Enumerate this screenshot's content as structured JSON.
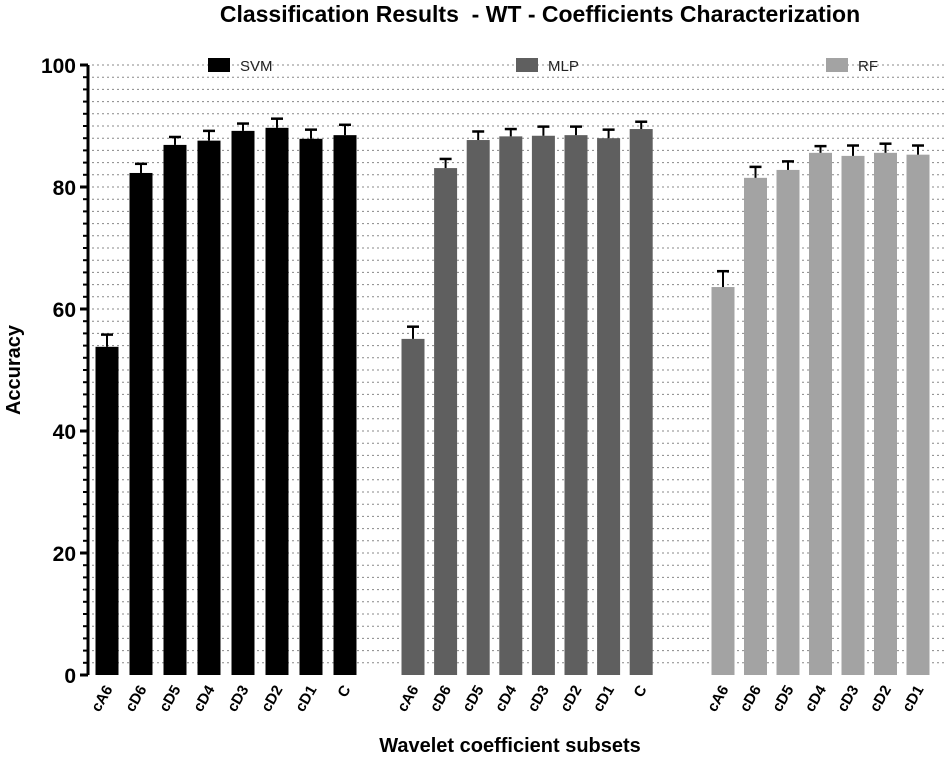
{
  "chart_data": {
    "type": "bar",
    "title": "Classification Results  - WT - Coefficients Characterization",
    "xlabel": "Wavelet coefficient subsets",
    "ylabel": "Accuracy",
    "ylim": [
      0,
      100
    ],
    "yticks": [
      0,
      20,
      40,
      60,
      80,
      100
    ],
    "grid": "horizontal dotted",
    "legend_placement": "top, above each group",
    "groups": [
      {
        "name": "SVM",
        "color": "#000000",
        "categories": [
          "cA6",
          "cD6",
          "cD5",
          "cD4",
          "cD3",
          "cD2",
          "cD1",
          "C"
        ],
        "values": [
          53.8,
          82.3,
          86.9,
          87.6,
          89.2,
          89.7,
          87.9,
          88.5
        ],
        "errors": [
          2.0,
          1.5,
          1.3,
          1.6,
          1.2,
          1.5,
          1.5,
          1.7
        ]
      },
      {
        "name": "MLP",
        "color": "#5f5f5f",
        "categories": [
          "cA6",
          "cD6",
          "cD5",
          "cD4",
          "cD3",
          "cD2",
          "cD1",
          "C"
        ],
        "values": [
          55.1,
          83.1,
          87.7,
          88.3,
          88.4,
          88.5,
          88.0,
          89.5
        ],
        "errors": [
          2.0,
          1.5,
          1.4,
          1.2,
          1.5,
          1.4,
          1.4,
          1.2
        ]
      },
      {
        "name": "RF",
        "color": "#a3a3a3",
        "categories": [
          "cA6",
          "cD6",
          "cD5",
          "cD4",
          "cD3",
          "cD2",
          "cD1"
        ],
        "values": [
          63.6,
          81.5,
          82.8,
          85.6,
          85.1,
          85.6,
          85.3
        ],
        "errors": [
          2.6,
          1.8,
          1.4,
          1.1,
          1.7,
          1.5,
          1.5
        ]
      }
    ]
  }
}
